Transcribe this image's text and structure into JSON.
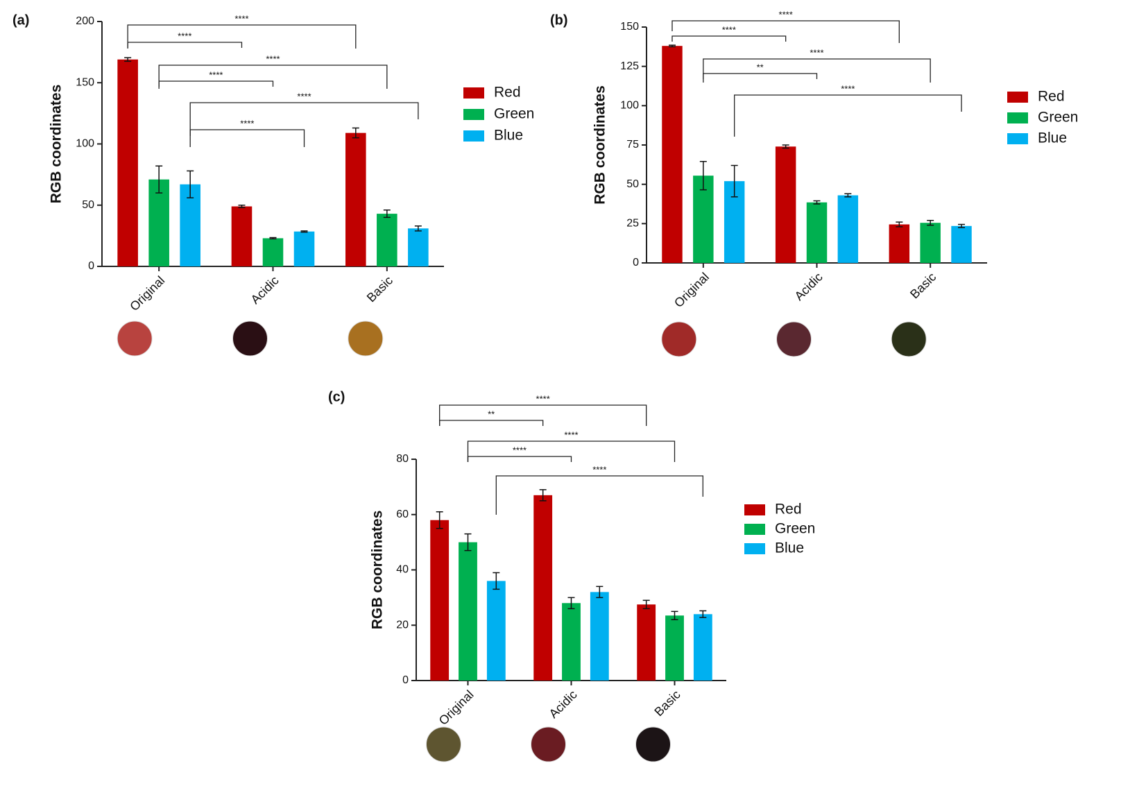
{
  "chart_data": [
    {
      "type": "bar",
      "title": "(a)",
      "y_label": "RGB coordinates",
      "categories": [
        "Original",
        "Acidic",
        "Basic"
      ],
      "series": [
        {
          "name": "Red",
          "color": "#c00000",
          "values": [
            169,
            49,
            109
          ],
          "errors": [
            1.5,
            1,
            4
          ]
        },
        {
          "name": "Green",
          "color": "#00b050",
          "values": [
            71,
            23,
            43
          ],
          "errors": [
            11,
            0.5,
            3
          ]
        },
        {
          "name": "Blue",
          "color": "#00b0f0",
          "values": [
            67,
            28.5,
            31
          ],
          "errors": [
            11,
            0.5,
            2
          ]
        }
      ],
      "ylim": [
        0,
        200
      ],
      "yticks": [
        0,
        50,
        100,
        150,
        200
      ],
      "annotations": [
        {
          "label": "****",
          "series": "Red",
          "from": "Original",
          "to": "Basic"
        },
        {
          "label": "****",
          "series": "Red",
          "from": "Original",
          "to": "Acidic"
        },
        {
          "label": "****",
          "series": "Green",
          "from": "Original",
          "to": "Basic"
        },
        {
          "label": "****",
          "series": "Green",
          "from": "Original",
          "to": "Acidic"
        },
        {
          "label": "****",
          "series": "Blue",
          "from": "Original",
          "to": "Basic"
        },
        {
          "label": "****",
          "series": "Blue",
          "from": "Original",
          "to": "Acidic"
        }
      ]
    },
    {
      "type": "bar",
      "title": "(b)",
      "y_label": "RGB coordinates",
      "categories": [
        "Original",
        "Acidic",
        "Basic"
      ],
      "series": [
        {
          "name": "Red",
          "color": "#c00000",
          "values": [
            138,
            74,
            24.5
          ],
          "errors": [
            0.5,
            1,
            1.5
          ]
        },
        {
          "name": "Green",
          "color": "#00b050",
          "values": [
            55.5,
            38.5,
            25.5
          ],
          "errors": [
            9,
            1,
            1.5
          ]
        },
        {
          "name": "Blue",
          "color": "#00b0f0",
          "values": [
            52,
            43,
            23.5
          ],
          "errors": [
            10,
            1,
            1
          ]
        }
      ],
      "ylim": [
        0,
        150
      ],
      "yticks": [
        0,
        25,
        50,
        75,
        100,
        125,
        150
      ],
      "annotations": [
        {
          "label": "****",
          "series": "Red",
          "from": "Original",
          "to": "Basic"
        },
        {
          "label": "****",
          "series": "Red",
          "from": "Original",
          "to": "Acidic"
        },
        {
          "label": "****",
          "series": "Green",
          "from": "Original",
          "to": "Basic"
        },
        {
          "label": "**",
          "series": "Green",
          "from": "Original",
          "to": "Acidic"
        },
        {
          "label": "****",
          "series": "Blue",
          "from": "Original",
          "to": "Basic"
        }
      ]
    },
    {
      "type": "bar",
      "title": "(c)",
      "y_label": "RGB coordinates",
      "categories": [
        "Original",
        "Acidic",
        "Basic"
      ],
      "series": [
        {
          "name": "Red",
          "color": "#c00000",
          "values": [
            58,
            67,
            27.5
          ],
          "errors": [
            3,
            2,
            1.5
          ]
        },
        {
          "name": "Green",
          "color": "#00b050",
          "values": [
            50,
            28,
            23.5
          ],
          "errors": [
            3,
            2,
            1.5
          ]
        },
        {
          "name": "Blue",
          "color": "#00b0f0",
          "values": [
            36,
            32,
            24
          ],
          "errors": [
            3,
            2,
            1.2
          ]
        }
      ],
      "ylim": [
        0,
        80
      ],
      "yticks": [
        0,
        20,
        40,
        60,
        80
      ],
      "annotations": [
        {
          "label": "****",
          "series": "Red",
          "from": "Original",
          "to": "Basic"
        },
        {
          "label": "**",
          "series": "Red",
          "from": "Original",
          "to": "Acidic"
        },
        {
          "label": "****",
          "series": "Green",
          "from": "Original",
          "to": "Basic"
        },
        {
          "label": "****",
          "series": "Green",
          "from": "Original",
          "to": "Acidic"
        },
        {
          "label": "****",
          "series": "Blue",
          "from": "Original",
          "to": "Basic"
        }
      ]
    }
  ]
}
